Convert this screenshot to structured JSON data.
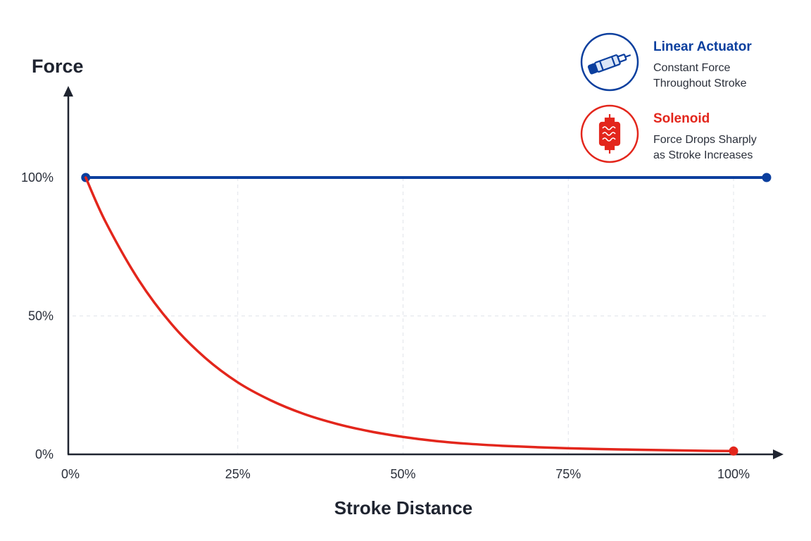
{
  "chart_data": {
    "type": "line",
    "ylabel": "Force",
    "xlabel": "Stroke Distance",
    "x_ticks": [
      "0%",
      "25%",
      "50%",
      "75%",
      "100%"
    ],
    "y_ticks": [
      "0%",
      "50%",
      "100%"
    ],
    "xlim": [
      0,
      100
    ],
    "ylim": [
      0,
      100
    ],
    "grid": true,
    "legend_position": "top-right",
    "series": [
      {
        "name": "Linear Actuator",
        "color": "#0b3f9e",
        "x": [
          2,
          105
        ],
        "y": [
          100,
          100
        ]
      },
      {
        "name": "Solenoid",
        "color": "#e3261c",
        "x": [
          2,
          5,
          10,
          15,
          20,
          25,
          30,
          35,
          40,
          45,
          50,
          55,
          60,
          65,
          70,
          75,
          80,
          85,
          90,
          95,
          100
        ],
        "y": [
          100,
          84,
          63,
          47,
          35,
          26,
          19.5,
          14.6,
          11,
          8.3,
          6.3,
          4.8,
          3.8,
          3.1,
          2.6,
          2.2,
          1.9,
          1.7,
          1.5,
          1.3,
          1.2
        ]
      }
    ]
  },
  "legend": [
    {
      "title": "Linear Actuator",
      "desc_line1": "Constant Force",
      "desc_line2": "Throughout Stroke",
      "color": "#0b3f9e",
      "icon": "actuator-icon"
    },
    {
      "title": "Solenoid",
      "desc_line1": "Force Drops Sharply",
      "desc_line2": "as Stroke Increases",
      "color": "#e3261c",
      "icon": "solenoid-icon"
    }
  ]
}
